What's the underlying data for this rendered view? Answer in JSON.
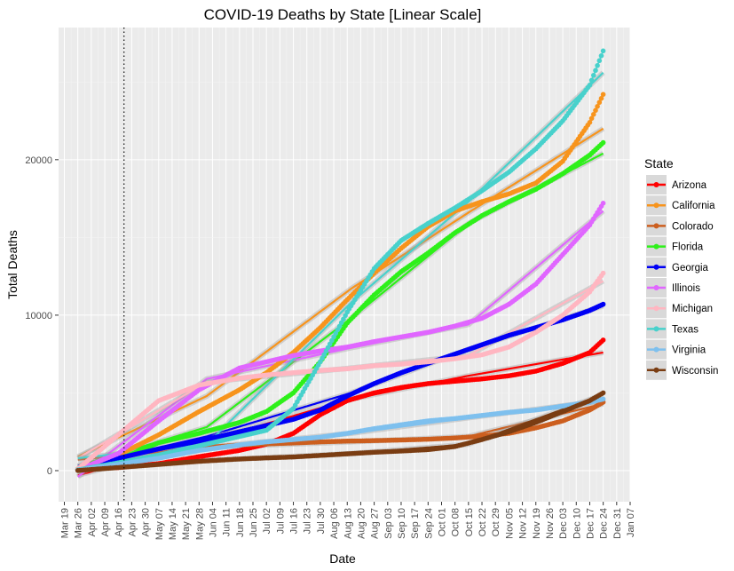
{
  "chart_data": {
    "type": "line",
    "title": "COVID-19 Deaths by State [Linear Scale]",
    "xlabel": "Date",
    "ylabel": "Total Deaths",
    "x_ticks": [
      "Mar 19",
      "Mar 26",
      "Apr 02",
      "Apr 09",
      "Apr 16",
      "Apr 23",
      "Apr 30",
      "May 07",
      "May 14",
      "May 21",
      "May 28",
      "Jun 04",
      "Jun 11",
      "Jun 18",
      "Jun 25",
      "Jul 02",
      "Jul 09",
      "Jul 16",
      "Jul 23",
      "Jul 30",
      "Aug 06",
      "Aug 13",
      "Aug 20",
      "Aug 27",
      "Sep 03",
      "Sep 10",
      "Sep 17",
      "Sep 24",
      "Oct 01",
      "Oct 08",
      "Oct 15",
      "Oct 22",
      "Oct 29",
      "Nov 05",
      "Nov 12",
      "Nov 19",
      "Nov 26",
      "Dec 03",
      "Dec 10",
      "Dec 17",
      "Dec 24",
      "Dec 31",
      "Jan 07"
    ],
    "y_ticks": [
      0,
      10000,
      20000
    ],
    "xlim": [
      "2020-03-16",
      "2021-01-07"
    ],
    "ylim": [
      -2000,
      28500
    ],
    "vline": "2020-04-19",
    "grid": true,
    "legend": {
      "title": "State",
      "position": "right"
    },
    "series": [
      {
        "name": "Arizona",
        "color": "#ff0000",
        "points": [
          [
            "2020-03-26",
            100
          ],
          [
            "2020-04-16",
            200
          ],
          [
            "2020-05-07",
            450
          ],
          [
            "2020-05-28",
            900
          ],
          [
            "2020-06-18",
            1300
          ],
          [
            "2020-07-02",
            1700
          ],
          [
            "2020-07-16",
            2400
          ],
          [
            "2020-07-30",
            3600
          ],
          [
            "2020-08-13",
            4500
          ],
          [
            "2020-08-27",
            5000
          ],
          [
            "2020-09-10",
            5350
          ],
          [
            "2020-09-24",
            5600
          ],
          [
            "2020-10-08",
            5750
          ],
          [
            "2020-10-22",
            5900
          ],
          [
            "2020-11-05",
            6100
          ],
          [
            "2020-11-19",
            6400
          ],
          [
            "2020-12-03",
            6900
          ],
          [
            "2020-12-17",
            7600
          ],
          [
            "2020-12-24",
            8400
          ]
        ],
        "fit": [
          [
            "2020-03-26",
            -300
          ],
          [
            "2020-06-01",
            1900
          ],
          [
            "2020-08-15",
            4600
          ],
          [
            "2020-10-15",
            6100
          ],
          [
            "2020-12-24",
            7600
          ]
        ]
      },
      {
        "name": "California",
        "color": "#f7941d",
        "points": [
          [
            "2020-03-26",
            100
          ],
          [
            "2020-04-16",
            1000
          ],
          [
            "2020-05-07",
            2300
          ],
          [
            "2020-05-28",
            3800
          ],
          [
            "2020-06-18",
            5200
          ],
          [
            "2020-07-02",
            6300
          ],
          [
            "2020-07-16",
            7600
          ],
          [
            "2020-07-30",
            9200
          ],
          [
            "2020-08-13",
            11000
          ],
          [
            "2020-08-27",
            12700
          ],
          [
            "2020-09-10",
            14300
          ],
          [
            "2020-09-24",
            15700
          ],
          [
            "2020-10-08",
            16700
          ],
          [
            "2020-10-22",
            17300
          ],
          [
            "2020-11-05",
            17800
          ],
          [
            "2020-11-19",
            18500
          ],
          [
            "2020-12-03",
            19900
          ],
          [
            "2020-12-17",
            22400
          ],
          [
            "2020-12-24",
            24200
          ]
        ],
        "fit": [
          [
            "2020-03-26",
            900
          ],
          [
            "2020-06-01",
            4800
          ],
          [
            "2020-08-15",
            11700
          ],
          [
            "2020-10-15",
            16600
          ],
          [
            "2020-12-24",
            22000
          ]
        ]
      },
      {
        "name": "Colorado",
        "color": "#cc5f1f",
        "points": [
          [
            "2020-03-26",
            50
          ],
          [
            "2020-04-16",
            500
          ],
          [
            "2020-05-07",
            1000
          ],
          [
            "2020-05-28",
            1450
          ],
          [
            "2020-06-18",
            1650
          ],
          [
            "2020-07-02",
            1720
          ],
          [
            "2020-07-16",
            1780
          ],
          [
            "2020-07-30",
            1850
          ],
          [
            "2020-08-13",
            1900
          ],
          [
            "2020-08-27",
            1930
          ],
          [
            "2020-09-10",
            1970
          ],
          [
            "2020-09-24",
            2020
          ],
          [
            "2020-10-08",
            2100
          ],
          [
            "2020-10-22",
            2220
          ],
          [
            "2020-11-05",
            2400
          ],
          [
            "2020-11-19",
            2750
          ],
          [
            "2020-12-03",
            3200
          ],
          [
            "2020-12-17",
            3900
          ],
          [
            "2020-12-24",
            4400
          ]
        ],
        "fit": [
          [
            "2020-03-26",
            700
          ],
          [
            "2020-06-01",
            1500
          ],
          [
            "2020-08-15",
            1850
          ],
          [
            "2020-10-15",
            2200
          ],
          [
            "2020-12-24",
            4300
          ]
        ]
      },
      {
        "name": "Florida",
        "color": "#2ef01a",
        "points": [
          [
            "2020-03-26",
            50
          ],
          [
            "2020-04-16",
            700
          ],
          [
            "2020-05-07",
            1800
          ],
          [
            "2020-05-28",
            2400
          ],
          [
            "2020-06-18",
            3100
          ],
          [
            "2020-07-02",
            3800
          ],
          [
            "2020-07-16",
            5000
          ],
          [
            "2020-07-30",
            7000
          ],
          [
            "2020-08-13",
            9500
          ],
          [
            "2020-08-27",
            11300
          ],
          [
            "2020-09-10",
            12800
          ],
          [
            "2020-09-24",
            14000
          ],
          [
            "2020-10-08",
            15300
          ],
          [
            "2020-10-22",
            16400
          ],
          [
            "2020-11-05",
            17300
          ],
          [
            "2020-11-19",
            18100
          ],
          [
            "2020-12-03",
            19100
          ],
          [
            "2020-12-17",
            20300
          ],
          [
            "2020-12-24",
            21100
          ]
        ],
        "fit": [
          [
            "2020-03-26",
            300
          ],
          [
            "2020-06-01",
            2800
          ],
          [
            "2020-08-15",
            9800
          ],
          [
            "2020-10-15",
            15900
          ],
          [
            "2020-12-24",
            20400
          ]
        ]
      },
      {
        "name": "Georgia",
        "color": "#0000f5",
        "points": [
          [
            "2020-03-26",
            50
          ],
          [
            "2020-04-16",
            800
          ],
          [
            "2020-05-07",
            1400
          ],
          [
            "2020-05-28",
            1900
          ],
          [
            "2020-06-18",
            2500
          ],
          [
            "2020-07-02",
            2900
          ],
          [
            "2020-07-16",
            3300
          ],
          [
            "2020-07-30",
            3900
          ],
          [
            "2020-08-13",
            4800
          ],
          [
            "2020-08-27",
            5600
          ],
          [
            "2020-09-10",
            6300
          ],
          [
            "2020-09-24",
            6900
          ],
          [
            "2020-10-08",
            7500
          ],
          [
            "2020-10-22",
            8100
          ],
          [
            "2020-11-05",
            8700
          ],
          [
            "2020-11-19",
            9200
          ],
          [
            "2020-12-03",
            9700
          ],
          [
            "2020-12-17",
            10300
          ],
          [
            "2020-12-24",
            10700
          ]
        ],
        "fit": [
          [
            "2020-03-26",
            300
          ],
          [
            "2020-06-01",
            2200
          ],
          [
            "2020-08-15",
            5000
          ],
          [
            "2020-10-15",
            7800
          ],
          [
            "2020-12-24",
            10600
          ]
        ]
      },
      {
        "name": "Illinois",
        "color": "#e066ff",
        "points": [
          [
            "2020-03-26",
            50
          ],
          [
            "2020-04-16",
            1100
          ],
          [
            "2020-05-07",
            3200
          ],
          [
            "2020-05-28",
            5200
          ],
          [
            "2020-06-18",
            6600
          ],
          [
            "2020-07-02",
            7000
          ],
          [
            "2020-07-16",
            7400
          ],
          [
            "2020-07-30",
            7700
          ],
          [
            "2020-08-13",
            7950
          ],
          [
            "2020-08-27",
            8300
          ],
          [
            "2020-09-10",
            8600
          ],
          [
            "2020-09-24",
            8900
          ],
          [
            "2020-10-08",
            9300
          ],
          [
            "2020-10-22",
            9800
          ],
          [
            "2020-11-05",
            10700
          ],
          [
            "2020-11-19",
            12000
          ],
          [
            "2020-12-03",
            13900
          ],
          [
            "2020-12-17",
            15800
          ],
          [
            "2020-12-24",
            17200
          ]
        ],
        "fit": [
          [
            "2020-03-26",
            -400
          ],
          [
            "2020-06-01",
            5900
          ],
          [
            "2020-08-15",
            7900
          ],
          [
            "2020-10-15",
            9400
          ],
          [
            "2020-12-24",
            16700
          ]
        ]
      },
      {
        "name": "Michigan",
        "color": "#ffb6c1",
        "points": [
          [
            "2020-03-26",
            100
          ],
          [
            "2020-04-16",
            2300
          ],
          [
            "2020-05-07",
            4500
          ],
          [
            "2020-05-28",
            5500
          ],
          [
            "2020-06-18",
            5950
          ],
          [
            "2020-07-02",
            6150
          ],
          [
            "2020-07-16",
            6300
          ],
          [
            "2020-07-30",
            6450
          ],
          [
            "2020-08-13",
            6550
          ],
          [
            "2020-08-27",
            6750
          ],
          [
            "2020-09-10",
            6850
          ],
          [
            "2020-09-24",
            7000
          ],
          [
            "2020-10-08",
            7200
          ],
          [
            "2020-10-22",
            7450
          ],
          [
            "2020-11-05",
            7950
          ],
          [
            "2020-11-19",
            8900
          ],
          [
            "2020-12-03",
            10000
          ],
          [
            "2020-12-17",
            11500
          ],
          [
            "2020-12-24",
            12700
          ]
        ],
        "fit": [
          [
            "2020-03-26",
            800
          ],
          [
            "2020-06-01",
            5700
          ],
          [
            "2020-08-15",
            6600
          ],
          [
            "2020-10-15",
            7400
          ],
          [
            "2020-12-24",
            12200
          ]
        ]
      },
      {
        "name": "Texas",
        "color": "#48d1cc",
        "points": [
          [
            "2020-03-26",
            50
          ],
          [
            "2020-04-16",
            500
          ],
          [
            "2020-05-07",
            1000
          ],
          [
            "2020-05-28",
            1600
          ],
          [
            "2020-06-18",
            2200
          ],
          [
            "2020-07-02",
            2600
          ],
          [
            "2020-07-16",
            4000
          ],
          [
            "2020-07-30",
            7000
          ],
          [
            "2020-08-13",
            10200
          ],
          [
            "2020-08-27",
            13000
          ],
          [
            "2020-09-10",
            14800
          ],
          [
            "2020-09-24",
            15900
          ],
          [
            "2020-10-08",
            16900
          ],
          [
            "2020-10-22",
            18000
          ],
          [
            "2020-11-05",
            19200
          ],
          [
            "2020-11-19",
            20700
          ],
          [
            "2020-12-03",
            22500
          ],
          [
            "2020-12-17",
            24800
          ],
          [
            "2020-12-24",
            27000
          ]
        ],
        "fit": [
          [
            "2020-03-26",
            800
          ],
          [
            "2020-06-01",
            1700
          ],
          [
            "2020-08-15",
            10800
          ],
          [
            "2020-10-15",
            17300
          ],
          [
            "2020-12-24",
            25600
          ]
        ]
      },
      {
        "name": "Virginia",
        "color": "#7ec0ee",
        "points": [
          [
            "2020-03-26",
            20
          ],
          [
            "2020-04-16",
            400
          ],
          [
            "2020-05-07",
            800
          ],
          [
            "2020-05-28",
            1300
          ],
          [
            "2020-06-18",
            1650
          ],
          [
            "2020-07-02",
            1850
          ],
          [
            "2020-07-16",
            2000
          ],
          [
            "2020-07-30",
            2150
          ],
          [
            "2020-08-13",
            2400
          ],
          [
            "2020-08-27",
            2700
          ],
          [
            "2020-09-10",
            2950
          ],
          [
            "2020-09-24",
            3200
          ],
          [
            "2020-10-08",
            3350
          ],
          [
            "2020-10-22",
            3550
          ],
          [
            "2020-11-05",
            3750
          ],
          [
            "2020-11-19",
            3900
          ],
          [
            "2020-12-03",
            4150
          ],
          [
            "2020-12-17",
            4400
          ],
          [
            "2020-12-24",
            4600
          ]
        ],
        "fit": [
          [
            "2020-03-26",
            200
          ],
          [
            "2020-06-01",
            1500
          ],
          [
            "2020-08-15",
            2400
          ],
          [
            "2020-10-15",
            3400
          ],
          [
            "2020-12-24",
            4500
          ]
        ]
      },
      {
        "name": "Wisconsin",
        "color": "#7a3d13",
        "points": [
          [
            "2020-03-26",
            10
          ],
          [
            "2020-04-16",
            200
          ],
          [
            "2020-05-07",
            400
          ],
          [
            "2020-05-28",
            600
          ],
          [
            "2020-06-18",
            750
          ],
          [
            "2020-07-02",
            820
          ],
          [
            "2020-07-16",
            880
          ],
          [
            "2020-07-30",
            980
          ],
          [
            "2020-08-13",
            1080
          ],
          [
            "2020-08-27",
            1180
          ],
          [
            "2020-09-10",
            1260
          ],
          [
            "2020-09-24",
            1350
          ],
          [
            "2020-10-08",
            1550
          ],
          [
            "2020-10-22",
            2000
          ],
          [
            "2020-11-05",
            2500
          ],
          [
            "2020-11-19",
            3100
          ],
          [
            "2020-12-03",
            3800
          ],
          [
            "2020-12-17",
            4500
          ],
          [
            "2020-12-24",
            5000
          ]
        ],
        "fit": [
          [
            "2020-03-26",
            0
          ],
          [
            "2020-06-01",
            650
          ],
          [
            "2020-08-15",
            1100
          ],
          [
            "2020-10-15",
            1700
          ],
          [
            "2020-12-24",
            4900
          ]
        ]
      }
    ]
  }
}
